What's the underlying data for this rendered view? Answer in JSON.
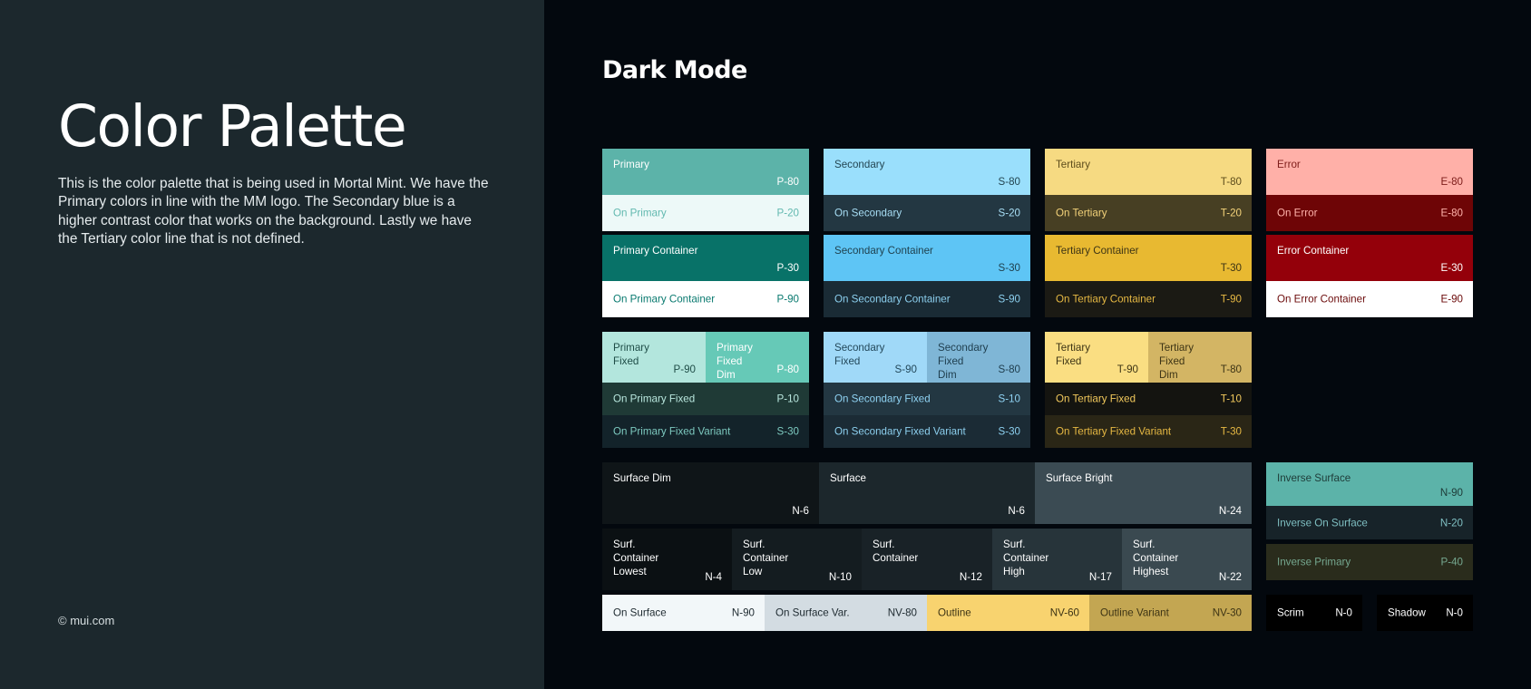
{
  "left_panel": {
    "title": "Color Palette",
    "description": "This is the color palette that is being used in Mortal Mint. We have the Primary colors in line with the MM logo. The Secondary blue is a higher contrast color that works on the background. Lastly we have the Tertiary color line that is not defined.",
    "footer": "© mui.com"
  },
  "dark_mode_title": "Dark Mode",
  "swatches": {
    "primary": {
      "label": "Primary",
      "code": "P-80",
      "bg": "#5cb3a9",
      "fg": "#ffffff"
    },
    "on_primary": {
      "label": "On Primary",
      "code": "P-20",
      "bg": "#edf9f8",
      "fg": "#63b9b0"
    },
    "primary_container": {
      "label": "Primary Container",
      "code": "P-30",
      "bg": "#087268",
      "fg": "#ffffff"
    },
    "on_primary_container": {
      "label": "On Primary Container",
      "code": "P-90",
      "bg": "#ffffff",
      "fg": "#0a7a70"
    },
    "secondary": {
      "label": "Secondary",
      "code": "S-80",
      "bg": "#9adffc",
      "fg": "#244652"
    },
    "on_secondary": {
      "label": "On Secondary",
      "code": "S-20",
      "bg": "#233742",
      "fg": "#a8def5"
    },
    "secondary_container": {
      "label": "Secondary Container",
      "code": "S-30",
      "bg": "#5ec5f5",
      "fg": "#1e3f4c"
    },
    "on_secondary_container": {
      "label": "On Secondary Container",
      "code": "S-90",
      "bg": "#1a2b35",
      "fg": "#8ccfee"
    },
    "tertiary": {
      "label": "Tertiary",
      "code": "T-80",
      "bg": "#f6da82",
      "fg": "#5e4d1c"
    },
    "on_tertiary": {
      "label": "On Tertiary",
      "code": "T-20",
      "bg": "#473f23",
      "fg": "#f4d37a"
    },
    "tertiary_container": {
      "label": "Tertiary Container",
      "code": "T-30",
      "bg": "#e8b931",
      "fg": "#3d3415"
    },
    "on_tertiary_container": {
      "label": "On Tertiary Container",
      "code": "T-90",
      "bg": "#1b1a14",
      "fg": "#e6b843"
    },
    "error": {
      "label": "Error",
      "code": "E-80",
      "bg": "#ffb0a8",
      "fg": "#7d1d1a"
    },
    "on_error": {
      "label": "On Error",
      "code": "E-80",
      "bg": "#6e0506",
      "fg": "#ffb3ab"
    },
    "error_container": {
      "label": "Error Container",
      "code": "E-30",
      "bg": "#94000a",
      "fg": "#ffffff"
    },
    "on_error_container": {
      "label": "On Error Container",
      "code": "E-90",
      "bg": "#ffffff",
      "fg": "#6b0a0a"
    },
    "primary_fixed": {
      "label": "Primary Fixed",
      "code": "P-90",
      "bg": "#b3e6dd",
      "fg": "#1f4d47"
    },
    "primary_fixed_dim": {
      "label": "Primary Fixed Dim",
      "code": "P-80",
      "bg": "#66c9b7",
      "fg": "#ffffff"
    },
    "on_primary_fixed": {
      "label": "On Primary Fixed",
      "code": "P-10",
      "bg": "#1f3a36",
      "fg": "#b8e6dd"
    },
    "on_primary_fixed_variant": {
      "label": "On Primary Fixed Variant",
      "code": "S-30",
      "bg": "#13232a",
      "fg": "#7dc9bf"
    },
    "secondary_fixed": {
      "label": "Secondary Fixed",
      "code": "S-90",
      "bg": "#a0d9f8",
      "fg": "#23485a"
    },
    "secondary_fixed_dim": {
      "label": "Secondary Fixed Dim",
      "code": "S-80",
      "bg": "#7fb6d6",
      "fg": "#1e3d4d"
    },
    "on_secondary_fixed": {
      "label": "On Secondary Fixed",
      "code": "S-10",
      "bg": "#233742",
      "fg": "#8fd2f2"
    },
    "on_secondary_fixed_variant": {
      "label": "On Secondary Fixed Variant",
      "code": "S-30",
      "bg": "#1b2b35",
      "fg": "#8ccfee"
    },
    "tertiary_fixed": {
      "label": "Tertiary Fixed",
      "code": "T-90",
      "bg": "#fade82",
      "fg": "#3d3415"
    },
    "tertiary_fixed_dim": {
      "label": "Tertiary Fixed Dim",
      "code": "T-80",
      "bg": "#d3b564",
      "fg": "#3d3415"
    },
    "on_tertiary_fixed": {
      "label": "On Tertiary Fixed",
      "code": "T-10",
      "bg": "#141410",
      "fg": "#f2c95c"
    },
    "on_tertiary_fixed_variant": {
      "label": "On Tertiary Fixed Variant",
      "code": "T-30",
      "bg": "#2a2616",
      "fg": "#e6b843"
    },
    "surface_dim": {
      "label": "Surface Dim",
      "code": "N-6",
      "bg": "#0f1518",
      "fg": "#ffffff"
    },
    "surface": {
      "label": "Surface",
      "code": "N-6",
      "bg": "#1c272c",
      "fg": "#ffffff"
    },
    "surface_bright": {
      "label": "Surface Bright",
      "code": "N-24",
      "bg": "#3b4b53",
      "fg": "#ffffff"
    },
    "surf_container_lowest": {
      "label": "Surf. Container Lowest",
      "code": "N-4",
      "bg": "#0b1013",
      "fg": "#ffffff"
    },
    "surf_container_low": {
      "label": "Surf. Container Low",
      "code": "N-10",
      "bg": "#141c20",
      "fg": "#ffffff"
    },
    "surf_container": {
      "label": "Surf. Container",
      "code": "N-12",
      "bg": "#192227",
      "fg": "#ffffff"
    },
    "surf_container_high": {
      "label": "Surf. Container High",
      "code": "N-17",
      "bg": "#27343a",
      "fg": "#ffffff"
    },
    "surf_container_highest": {
      "label": "Surf. Container Highest",
      "code": "N-22",
      "bg": "#3a4950",
      "fg": "#ffffff"
    },
    "on_surface": {
      "label": "On Surface",
      "code": "N-90",
      "bg": "#f2f7f9",
      "fg": "#1e2a30"
    },
    "on_surface_var": {
      "label": "On Surface Var.",
      "code": "NV-80",
      "bg": "#d3dce2",
      "fg": "#1e2a30"
    },
    "outline": {
      "label": "Outline",
      "code": "NV-60",
      "bg": "#f8d36f",
      "fg": "#3d3415"
    },
    "outline_variant": {
      "label": "Outline Variant",
      "code": "NV-30",
      "bg": "#c3a652",
      "fg": "#3d3415"
    },
    "inverse_surface": {
      "label": "Inverse Surface",
      "code": "N-90",
      "bg": "#5cb3a9",
      "fg": "#1e3b38"
    },
    "inverse_on_surface": {
      "label": "Inverse On Surface",
      "code": "N-20",
      "bg": "#172329",
      "fg": "#7fbfc2"
    },
    "inverse_primary": {
      "label": "Inverse Primary",
      "code": "P-40",
      "bg": "#2a2c1c",
      "fg": "#75a78f"
    },
    "scrim": {
      "label": "Scrim",
      "code": "N-0",
      "bg": "#000000",
      "fg": "#ffffff"
    },
    "shadow": {
      "label": "Shadow",
      "code": "N-0",
      "bg": "#000000",
      "fg": "#ffffff"
    }
  }
}
